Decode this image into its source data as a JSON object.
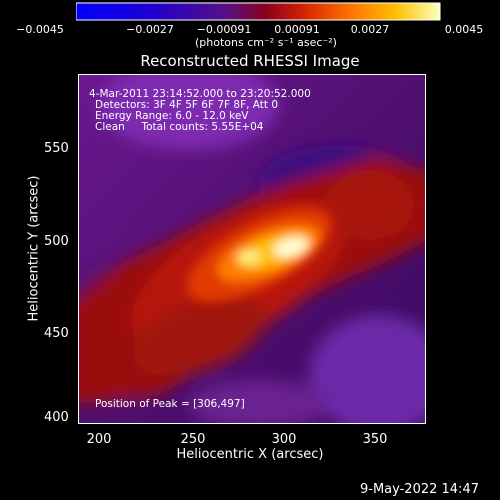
{
  "colorbar": {
    "ticks": [
      "−0.0045",
      "−0.0027",
      "−0.00091",
      "0.00091",
      "0.0027",
      "0.0045"
    ],
    "units": "(photons cm⁻² s⁻¹ asec⁻²)"
  },
  "title": "Reconstructed RHESSI Image",
  "info": {
    "time": "4-Mar-2011 23:14:52.000 to 23:20:52.000",
    "detectors": "Detectors: 3F 4F 5F 6F 7F 8F, Att 0",
    "energy": "Energy Range: 6.0 - 12.0 keV",
    "clean": "Clean     Total counts: 5.55E+04",
    "peak": "Position of Peak = [306,497]"
  },
  "axes": {
    "x_label": "Heliocentric X (arcsec)",
    "y_label": "Heliocentric Y (arcsec)",
    "x_ticks": [
      "200",
      "250",
      "300",
      "350"
    ],
    "y_ticks": [
      "550",
      "500",
      "450",
      "400"
    ]
  },
  "footer_date": "9-May-2022 14:47"
}
